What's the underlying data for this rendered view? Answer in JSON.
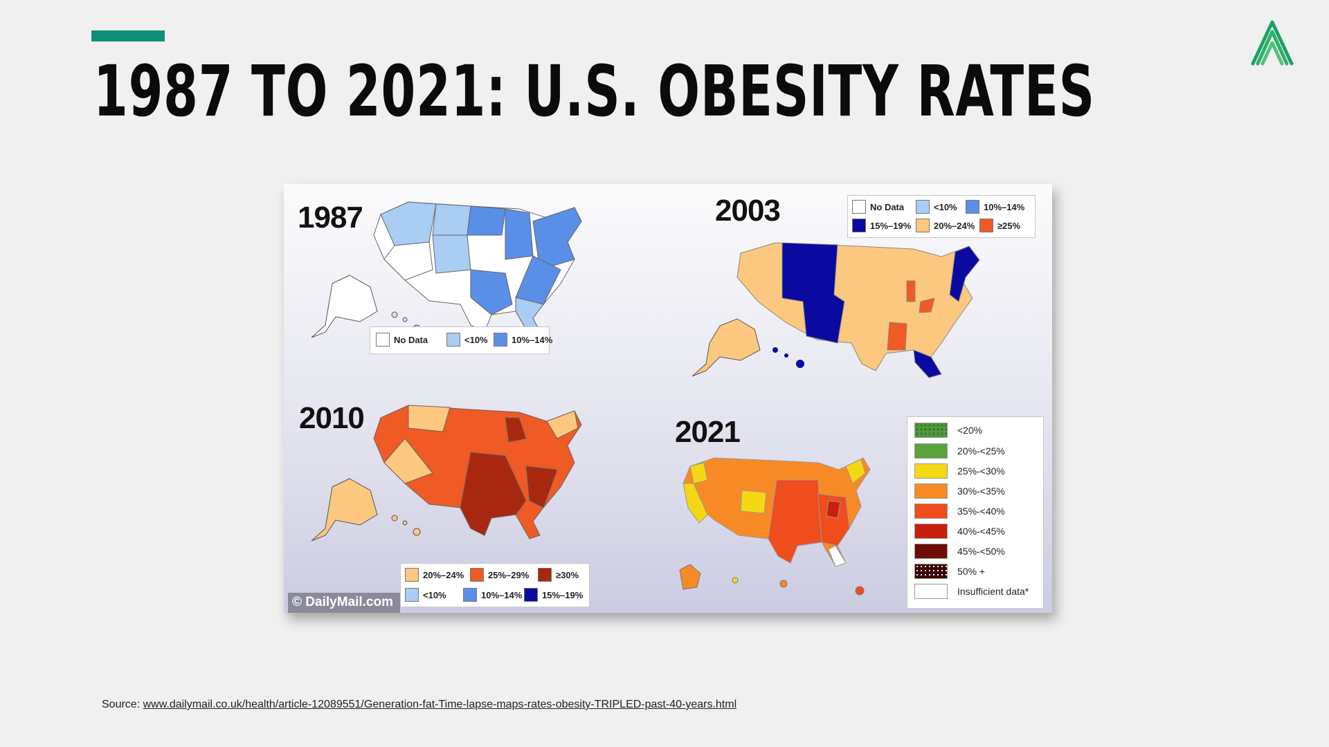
{
  "slide": {
    "title": "1987 TO 2021: U.S. OBESITY RATES",
    "accent_color": "#0f8f76",
    "logo_icon": "green-chevron-logo",
    "source_label": "Source:",
    "source_url": "www.dailymail.co.uk/health/article-12089551/Generation-fat-Time-lapse-maps-rates-obesity-TRIPLED-past-40-years.html"
  },
  "figure": {
    "watermark": "© DailyMail.com",
    "maps": {
      "y1987": {
        "year": "1987",
        "legend": [
          {
            "label": "No Data",
            "color": "#ffffff"
          },
          {
            "label": "<10%",
            "color": "#a9cdf3"
          },
          {
            "label": "10%–14%",
            "color": "#5a8fe8"
          }
        ]
      },
      "y2003": {
        "year": "2003",
        "legend": [
          {
            "label": "No Data",
            "color": "#ffffff"
          },
          {
            "label": "<10%",
            "color": "#a9cdf3"
          },
          {
            "label": "10%–14%",
            "color": "#5a8fe8"
          },
          {
            "label": "15%–19%",
            "color": "#0a0aa0"
          },
          {
            "label": "20%–24%",
            "color": "#fcc77e"
          },
          {
            "label": "≥25%",
            "color": "#f05a24"
          }
        ]
      },
      "y2010": {
        "year": "2010",
        "legend": [
          {
            "label": "20%–24%",
            "color": "#fcc77e"
          },
          {
            "label": "25%–29%",
            "color": "#f05a24"
          },
          {
            "label": "≥30%",
            "color": "#a8270f"
          },
          {
            "label": "<10%",
            "color": "#a9cdf3"
          },
          {
            "label": "10%–14%",
            "color": "#5a8fe8"
          },
          {
            "label": "15%–19%",
            "color": "#0a0aa0"
          }
        ]
      },
      "y2021": {
        "year": "2021",
        "legend": [
          {
            "label": "<20%",
            "color": "#4e9a3c"
          },
          {
            "label": "20%-<25%",
            "color": "#5aa33a"
          },
          {
            "label": "25%-<30%",
            "color": "#f6d713"
          },
          {
            "label": "30%-<35%",
            "color": "#f88a25"
          },
          {
            "label": "35%-<40%",
            "color": "#ef4d1c"
          },
          {
            "label": "40%-<45%",
            "color": "#c8200e"
          },
          {
            "label": "45%-<50%",
            "color": "#6c0d06"
          },
          {
            "label": "50% +",
            "color": "#3a0502"
          },
          {
            "label": "Insufficient data*",
            "color": "#ffffff"
          }
        ]
      }
    }
  }
}
